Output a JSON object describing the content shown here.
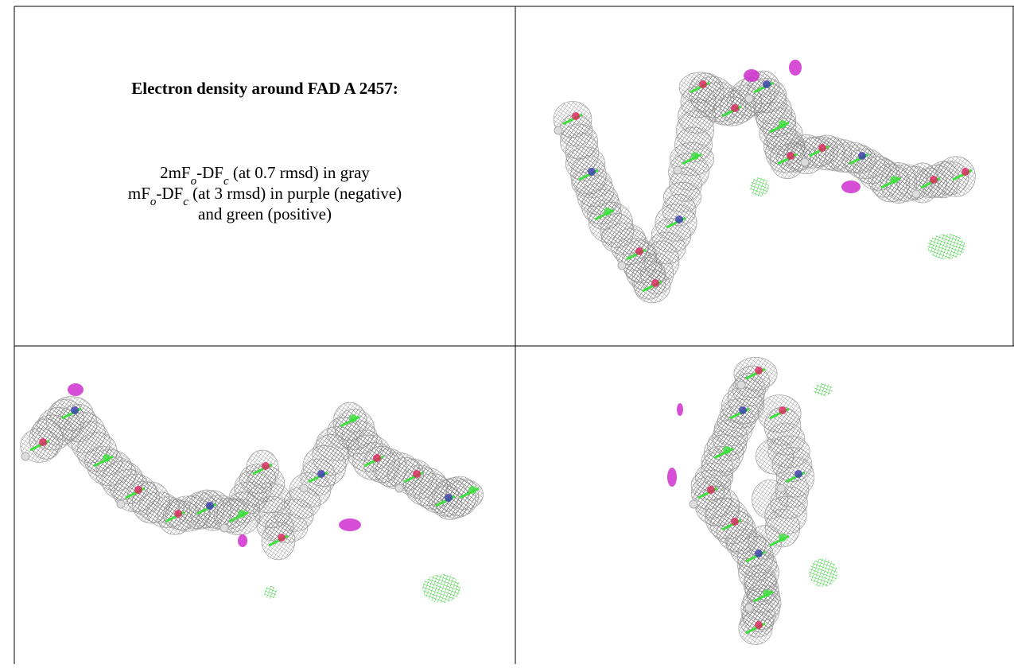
{
  "caption": {
    "title": "Electron density around FAD A 2457:",
    "lines": [
      {
        "parts": [
          "2mF",
          "o",
          "-DF",
          "c",
          " (at 0.7 rmsd) in gray"
        ]
      },
      {
        "parts": [
          "mF",
          "o",
          "-DF",
          "c",
          " (at 3 rmsd) in purple (negative)"
        ]
      },
      {
        "parts": [
          "and green (positive)"
        ]
      }
    ]
  }
}
